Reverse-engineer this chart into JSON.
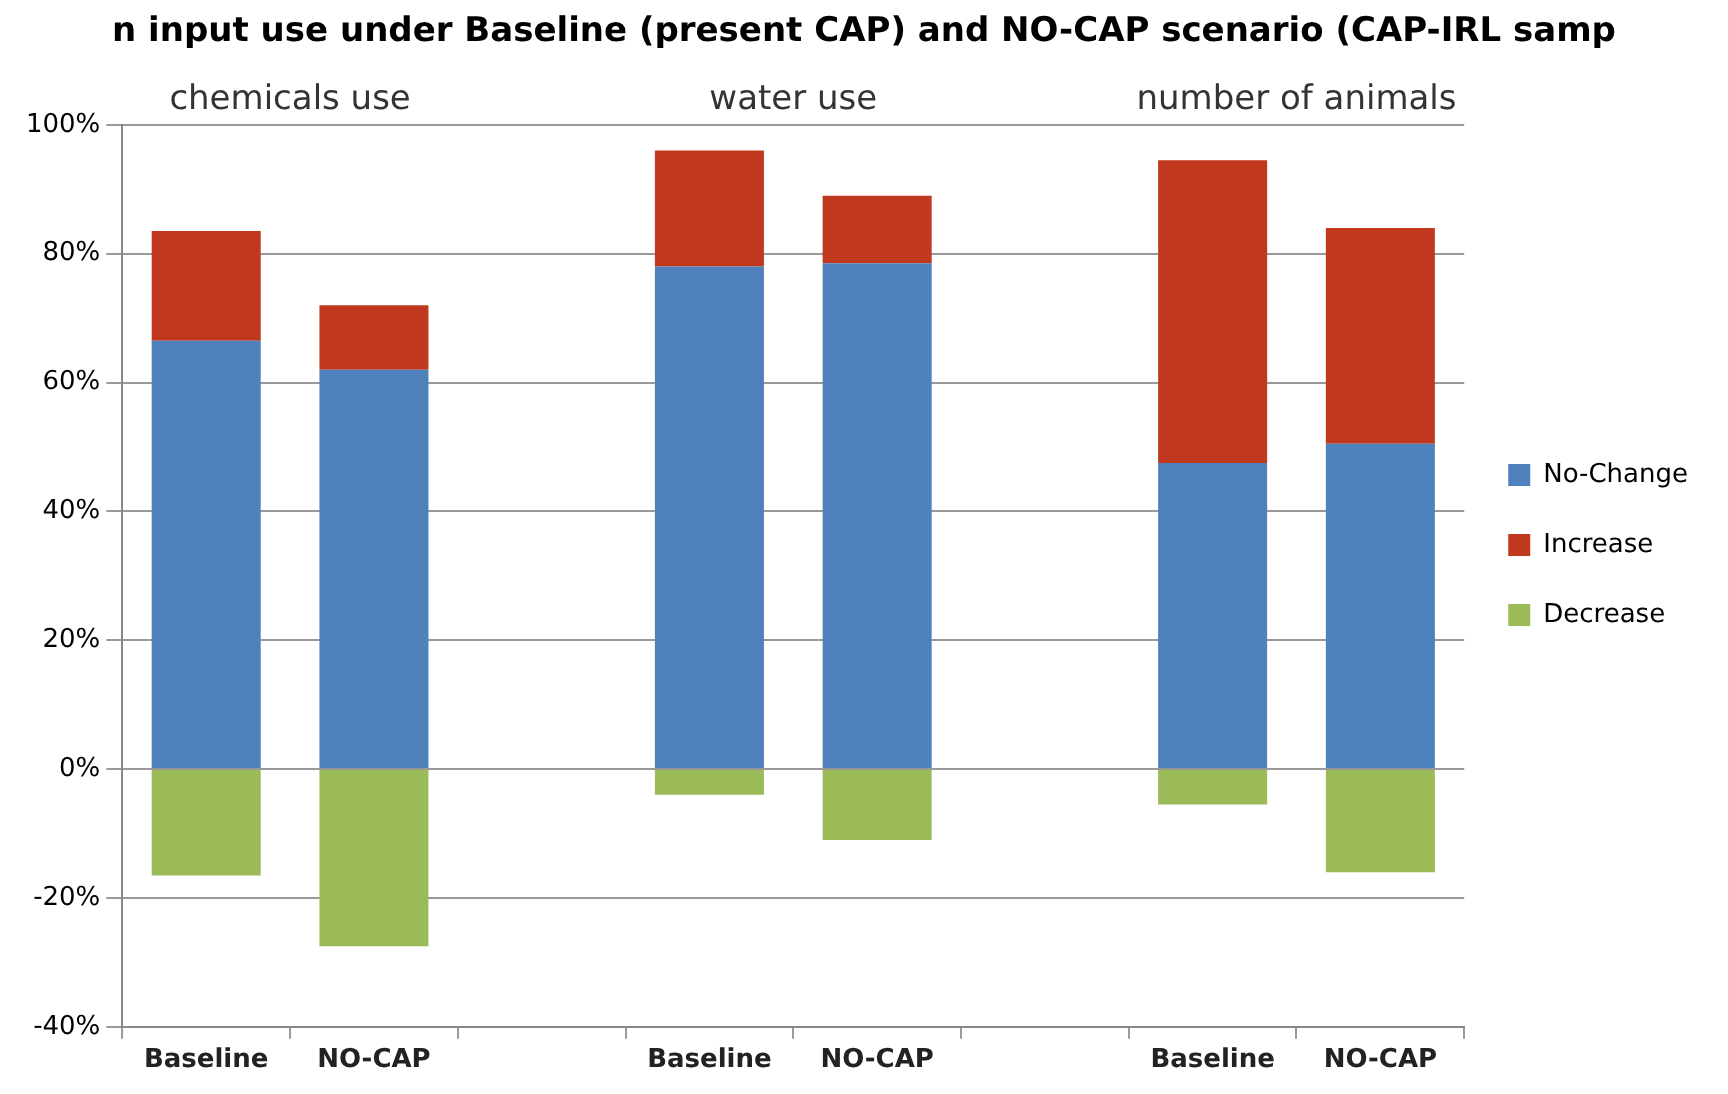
{
  "chart_data": {
    "type": "bar",
    "title": "n input use under Baseline (present CAP) and NO-CAP scenario (CAP-IRL samp",
    "annotations": [
      "chemicals use",
      "water use",
      "number of animals"
    ],
    "categories": [
      "Baseline",
      "NO-CAP",
      null,
      "Baseline",
      "NO-CAP",
      null,
      "Baseline",
      "NO-CAP"
    ],
    "stacked": true,
    "series": [
      {
        "name": "No-Change",
        "color": "#4f81bd",
        "values": [
          66.5,
          62,
          null,
          78,
          78.5,
          null,
          47.5,
          50.5
        ]
      },
      {
        "name": "Increase",
        "color": "#c0391f",
        "values": [
          17,
          10,
          null,
          18,
          10.5,
          null,
          47,
          33.5
        ]
      },
      {
        "name": "Decrease",
        "color": "#9bbb59",
        "values": [
          -16.5,
          -27.5,
          null,
          -4,
          -11,
          null,
          -5.5,
          -16
        ]
      }
    ],
    "ylim": [
      -40,
      100
    ],
    "yticks": [
      {
        "value": -40,
        "label": "-40%"
      },
      {
        "value": -20,
        "label": "-20%"
      },
      {
        "value": 0,
        "label": "0%"
      },
      {
        "value": 20,
        "label": "20%"
      },
      {
        "value": 40,
        "label": "40%"
      },
      {
        "value": 60,
        "label": "60%"
      },
      {
        "value": 80,
        "label": "80%"
      },
      {
        "value": 100,
        "label": "100%"
      }
    ],
    "grid": "y",
    "legend": "right"
  }
}
